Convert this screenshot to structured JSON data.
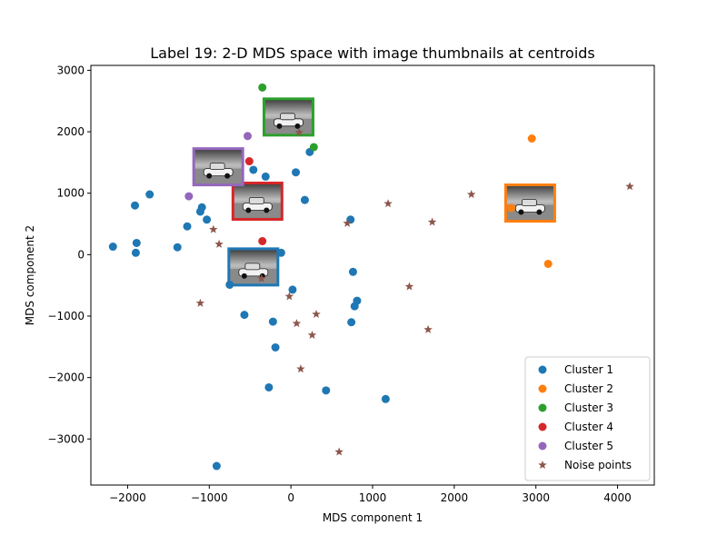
{
  "chart_data": {
    "type": "scatter",
    "title": "Label 19: 2-D MDS space with image thumbnails at centroids",
    "xlabel": "MDS component 1",
    "ylabel": "MDS component 2",
    "xlim": [
      -2450,
      4450
    ],
    "ylim": [
      -3750,
      3080
    ],
    "xticks": [
      -2000,
      -1000,
      0,
      1000,
      2000,
      3000,
      4000
    ],
    "xtick_labels": [
      "−2000",
      "−1000",
      "0",
      "1000",
      "2000",
      "3000",
      "4000"
    ],
    "yticks": [
      -3000,
      -2000,
      -1000,
      0,
      1000,
      2000,
      3000
    ],
    "ytick_labels": [
      "−3000",
      "−2000",
      "−1000",
      "0",
      "1000",
      "2000",
      "3000"
    ],
    "grid": false,
    "legend_position": "lower-right",
    "series": [
      {
        "name": "Cluster 1",
        "color": "#1f77b4",
        "marker": "circle",
        "points": [
          [
            -2180,
            130
          ],
          [
            -1910,
            800
          ],
          [
            -1890,
            190
          ],
          [
            -1900,
            30
          ],
          [
            -1730,
            980
          ],
          [
            -1390,
            120
          ],
          [
            -1270,
            460
          ],
          [
            -1110,
            700
          ],
          [
            -1090,
            770
          ],
          [
            -1030,
            570
          ],
          [
            -750,
            -490
          ],
          [
            -570,
            -980
          ],
          [
            -460,
            1380
          ],
          [
            -310,
            1270
          ],
          [
            -270,
            -2160
          ],
          [
            -220,
            -1090
          ],
          [
            -190,
            -1510
          ],
          [
            -120,
            30
          ],
          [
            20,
            -570
          ],
          [
            60,
            1340
          ],
          [
            170,
            890
          ],
          [
            230,
            1670
          ],
          [
            430,
            -2210
          ],
          [
            730,
            570
          ],
          [
            740,
            -1100
          ],
          [
            760,
            -280
          ],
          [
            780,
            -840
          ],
          [
            810,
            -750
          ],
          [
            1160,
            -2350
          ],
          [
            -910,
            -3440
          ]
        ]
      },
      {
        "name": "Cluster 2",
        "color": "#ff7f0e",
        "marker": "circle",
        "points": [
          [
            2950,
            1890
          ],
          [
            3150,
            -150
          ],
          [
            2700,
            760
          ]
        ]
      },
      {
        "name": "Cluster 3",
        "color": "#2ca02c",
        "marker": "circle",
        "points": [
          [
            -350,
            2720
          ],
          [
            280,
            1750
          ]
        ]
      },
      {
        "name": "Cluster 4",
        "color": "#d62728",
        "marker": "circle",
        "points": [
          [
            -510,
            1520
          ],
          [
            -350,
            220
          ]
        ]
      },
      {
        "name": "Cluster 5",
        "color": "#9467bd",
        "marker": "circle",
        "points": [
          [
            -530,
            1930
          ],
          [
            -1250,
            950
          ]
        ]
      },
      {
        "name": "Noise points",
        "color": "#8c564b",
        "marker": "star",
        "points": [
          [
            -1110,
            -790
          ],
          [
            -950,
            410
          ],
          [
            -880,
            170
          ],
          [
            -360,
            -390
          ],
          [
            -20,
            -680
          ],
          [
            70,
            -1120
          ],
          [
            100,
            1990
          ],
          [
            120,
            -1860
          ],
          [
            260,
            -1310
          ],
          [
            310,
            -970
          ],
          [
            690,
            510
          ],
          [
            590,
            -3210
          ],
          [
            1190,
            830
          ],
          [
            1450,
            -520
          ],
          [
            1680,
            -1220
          ],
          [
            1730,
            530
          ],
          [
            2210,
            980
          ],
          [
            4150,
            1110
          ]
        ]
      }
    ],
    "thumbnails": [
      {
        "cluster": "Cluster 1",
        "color": "#1f77b4",
        "x": -460,
        "y": -200
      },
      {
        "cluster": "Cluster 2",
        "color": "#ff7f0e",
        "x": 2930,
        "y": 840
      },
      {
        "cluster": "Cluster 3",
        "color": "#2ca02c",
        "x": -30,
        "y": 2240
      },
      {
        "cluster": "Cluster 4",
        "color": "#d62728",
        "x": -410,
        "y": 870
      },
      {
        "cluster": "Cluster 5",
        "color": "#9467bd",
        "x": -890,
        "y": 1430
      }
    ]
  }
}
